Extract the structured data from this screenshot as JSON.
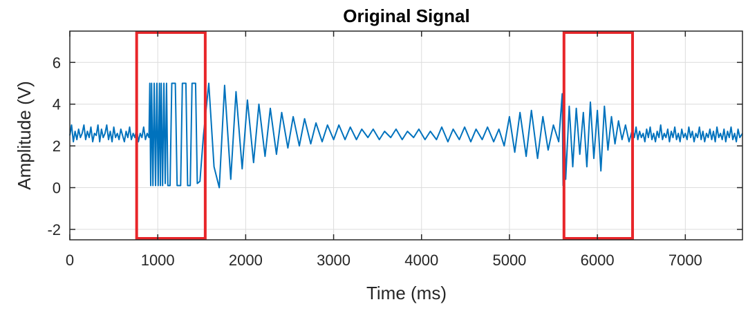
{
  "chart_data": {
    "type": "line",
    "title": "Original Signal",
    "xlabel": "Time (ms)",
    "ylabel": "Amplitude (V)",
    "xlim": [
      0,
      7650
    ],
    "ylim": [
      -2.5,
      7.5
    ],
    "xticks": [
      0,
      1000,
      2000,
      3000,
      4000,
      5000,
      6000,
      7000
    ],
    "yticks": [
      -2,
      0,
      2,
      4,
      6
    ],
    "xtick_labels": [
      "0",
      "1000",
      "2000",
      "3000",
      "4000",
      "5000",
      "6000",
      "7000"
    ],
    "ytick_labels": [
      "-2",
      "0",
      "2",
      "4",
      "6"
    ],
    "grid": true,
    "line_color": "#0072BD",
    "highlight_color": "#E8262A",
    "highlights": [
      {
        "x0": 760,
        "x1": 1540,
        "y0": -2.5,
        "y1": 7.5
      },
      {
        "x0": 5620,
        "x1": 6400,
        "y0": -2.5,
        "y1": 7.5
      }
    ],
    "series": [
      {
        "points": [
          [
            0,
            2.5
          ],
          [
            20,
            3.0
          ],
          [
            40,
            2.2
          ],
          [
            60,
            2.7
          ],
          [
            80,
            2.3
          ],
          [
            100,
            2.8
          ],
          [
            120,
            2.4
          ],
          [
            140,
            2.6
          ],
          [
            160,
            3.0
          ],
          [
            180,
            2.3
          ],
          [
            200,
            2.7
          ],
          [
            220,
            2.4
          ],
          [
            240,
            2.9
          ],
          [
            260,
            2.2
          ],
          [
            280,
            2.6
          ],
          [
            300,
            2.5
          ],
          [
            320,
            3.0
          ],
          [
            340,
            2.2
          ],
          [
            360,
            2.8
          ],
          [
            380,
            2.4
          ],
          [
            400,
            2.6
          ],
          [
            420,
            3.0
          ],
          [
            440,
            2.3
          ],
          [
            460,
            2.7
          ],
          [
            480,
            2.2
          ],
          [
            500,
            2.9
          ],
          [
            520,
            2.4
          ],
          [
            540,
            2.6
          ],
          [
            560,
            2.3
          ],
          [
            580,
            2.8
          ],
          [
            600,
            2.5
          ],
          [
            620,
            2.2
          ],
          [
            640,
            2.7
          ],
          [
            660,
            2.4
          ],
          [
            680,
            2.9
          ],
          [
            700,
            2.3
          ],
          [
            720,
            2.6
          ],
          [
            740,
            2.4
          ],
          [
            760,
            2.8
          ],
          [
            780,
            2.2
          ],
          [
            800,
            2.6
          ],
          [
            820,
            2.4
          ],
          [
            840,
            2.9
          ],
          [
            860,
            2.3
          ],
          [
            880,
            2.6
          ],
          [
            900,
            2.4
          ],
          [
            910,
            5.0
          ],
          [
            920,
            0.1
          ],
          [
            930,
            5.0
          ],
          [
            945,
            0.1
          ],
          [
            960,
            5.0
          ],
          [
            975,
            0.1
          ],
          [
            990,
            5.0
          ],
          [
            1005,
            0.1
          ],
          [
            1020,
            5.0
          ],
          [
            1030,
            0.1
          ],
          [
            1040,
            5.0
          ],
          [
            1055,
            0.1
          ],
          [
            1070,
            5.0
          ],
          [
            1085,
            0.2
          ],
          [
            1100,
            5.0
          ],
          [
            1115,
            0.1
          ],
          [
            1140,
            0.1
          ],
          [
            1160,
            5.0
          ],
          [
            1200,
            5.0
          ],
          [
            1220,
            0.1
          ],
          [
            1260,
            0.1
          ],
          [
            1280,
            5.0
          ],
          [
            1320,
            5.0
          ],
          [
            1340,
            0.1
          ],
          [
            1370,
            0.1
          ],
          [
            1390,
            5.0
          ],
          [
            1430,
            5.0
          ],
          [
            1450,
            0.2
          ],
          [
            1480,
            0.3
          ],
          [
            1520,
            2.5
          ],
          [
            1580,
            5.0
          ],
          [
            1640,
            1.0
          ],
          [
            1700,
            0.0
          ],
          [
            1760,
            4.9
          ],
          [
            1830,
            0.4
          ],
          [
            1890,
            4.6
          ],
          [
            1960,
            0.9
          ],
          [
            2020,
            4.2
          ],
          [
            2090,
            1.2
          ],
          [
            2150,
            4.0
          ],
          [
            2220,
            1.5
          ],
          [
            2280,
            3.8
          ],
          [
            2350,
            1.6
          ],
          [
            2410,
            3.6
          ],
          [
            2480,
            1.9
          ],
          [
            2540,
            3.4
          ],
          [
            2610,
            2.0
          ],
          [
            2670,
            3.3
          ],
          [
            2740,
            2.1
          ],
          [
            2800,
            3.1
          ],
          [
            2870,
            2.2
          ],
          [
            2930,
            3.0
          ],
          [
            3000,
            2.3
          ],
          [
            3060,
            3.0
          ],
          [
            3130,
            2.3
          ],
          [
            3190,
            2.9
          ],
          [
            3260,
            2.3
          ],
          [
            3320,
            2.8
          ],
          [
            3390,
            2.4
          ],
          [
            3450,
            2.8
          ],
          [
            3520,
            2.3
          ],
          [
            3580,
            2.7
          ],
          [
            3650,
            2.4
          ],
          [
            3710,
            2.8
          ],
          [
            3780,
            2.3
          ],
          [
            3840,
            2.7
          ],
          [
            3910,
            2.4
          ],
          [
            3970,
            2.8
          ],
          [
            4040,
            2.3
          ],
          [
            4100,
            2.7
          ],
          [
            4170,
            2.3
          ],
          [
            4230,
            2.9
          ],
          [
            4300,
            2.2
          ],
          [
            4360,
            2.8
          ],
          [
            4430,
            2.3
          ],
          [
            4490,
            2.9
          ],
          [
            4560,
            2.2
          ],
          [
            4620,
            2.8
          ],
          [
            4690,
            2.3
          ],
          [
            4750,
            2.9
          ],
          [
            4820,
            2.2
          ],
          [
            4880,
            2.8
          ],
          [
            4940,
            2.0
          ],
          [
            5000,
            3.4
          ],
          [
            5060,
            1.7
          ],
          [
            5120,
            3.6
          ],
          [
            5190,
            1.5
          ],
          [
            5250,
            3.7
          ],
          [
            5320,
            1.4
          ],
          [
            5380,
            3.4
          ],
          [
            5440,
            1.8
          ],
          [
            5500,
            3.0
          ],
          [
            5560,
            2.2
          ],
          [
            5600,
            4.5
          ],
          [
            5610,
            0.1
          ],
          [
            5620,
            4.4
          ],
          [
            5640,
            0.4
          ],
          [
            5680,
            3.9
          ],
          [
            5720,
            1.0
          ],
          [
            5760,
            3.8
          ],
          [
            5800,
            1.6
          ],
          [
            5840,
            3.6
          ],
          [
            5880,
            1.0
          ],
          [
            5920,
            4.1
          ],
          [
            5960,
            1.4
          ],
          [
            6000,
            3.7
          ],
          [
            6040,
            0.8
          ],
          [
            6080,
            3.9
          ],
          [
            6120,
            1.8
          ],
          [
            6160,
            3.4
          ],
          [
            6200,
            2.1
          ],
          [
            6240,
            3.2
          ],
          [
            6280,
            2.3
          ],
          [
            6320,
            3.0
          ],
          [
            6360,
            2.2
          ],
          [
            6400,
            2.8
          ],
          [
            6420,
            2.4
          ],
          [
            6440,
            2.9
          ],
          [
            6460,
            2.3
          ],
          [
            6480,
            2.7
          ],
          [
            6500,
            2.4
          ],
          [
            6520,
            2.6
          ],
          [
            6540,
            2.2
          ],
          [
            6560,
            2.8
          ],
          [
            6580,
            2.4
          ],
          [
            6600,
            2.9
          ],
          [
            6620,
            2.3
          ],
          [
            6640,
            2.6
          ],
          [
            6660,
            2.2
          ],
          [
            6680,
            2.7
          ],
          [
            6700,
            2.4
          ],
          [
            6720,
            3.0
          ],
          [
            6740,
            2.3
          ],
          [
            6760,
            2.6
          ],
          [
            6780,
            2.4
          ],
          [
            6800,
            2.8
          ],
          [
            6820,
            2.2
          ],
          [
            6840,
            2.7
          ],
          [
            6860,
            2.4
          ],
          [
            6880,
            2.9
          ],
          [
            6900,
            2.3
          ],
          [
            6920,
            2.6
          ],
          [
            6940,
            2.2
          ],
          [
            6960,
            2.8
          ],
          [
            6980,
            2.4
          ],
          [
            7000,
            2.6
          ],
          [
            7020,
            2.3
          ],
          [
            7040,
            2.9
          ],
          [
            7060,
            2.4
          ],
          [
            7080,
            2.7
          ],
          [
            7100,
            2.2
          ],
          [
            7120,
            2.6
          ],
          [
            7140,
            2.4
          ],
          [
            7160,
            2.9
          ],
          [
            7180,
            2.3
          ],
          [
            7200,
            2.7
          ],
          [
            7220,
            2.2
          ],
          [
            7240,
            2.6
          ],
          [
            7260,
            2.4
          ],
          [
            7280,
            2.8
          ],
          [
            7300,
            2.3
          ],
          [
            7320,
            2.7
          ],
          [
            7340,
            2.2
          ],
          [
            7360,
            2.9
          ],
          [
            7380,
            2.4
          ],
          [
            7400,
            2.6
          ],
          [
            7420,
            2.3
          ],
          [
            7440,
            2.8
          ],
          [
            7460,
            2.2
          ],
          [
            7480,
            2.7
          ],
          [
            7500,
            2.4
          ],
          [
            7520,
            2.9
          ],
          [
            7540,
            2.3
          ],
          [
            7560,
            2.6
          ],
          [
            7580,
            2.2
          ],
          [
            7600,
            2.8
          ],
          [
            7620,
            2.4
          ],
          [
            7650,
            2.6
          ]
        ]
      }
    ]
  }
}
